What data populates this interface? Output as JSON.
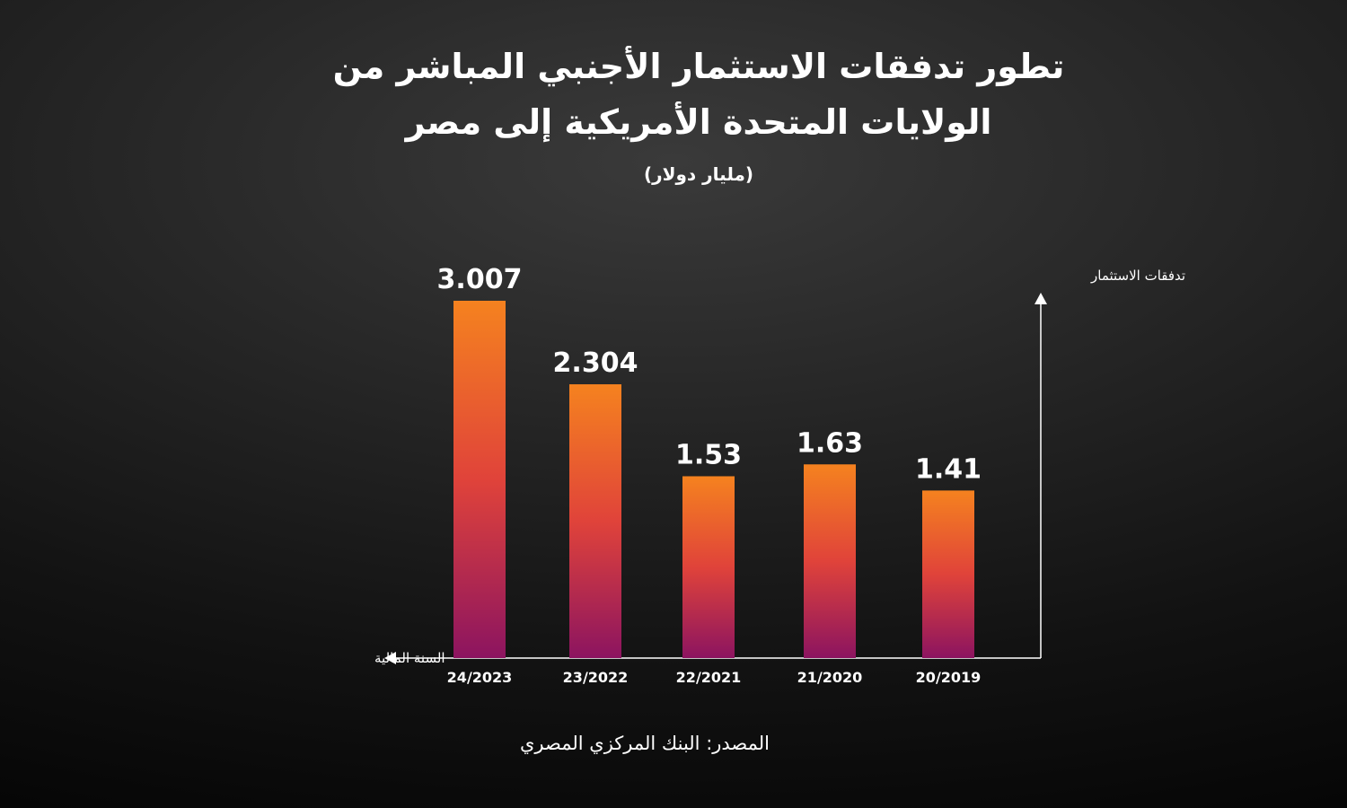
{
  "title": {
    "line1": "تطور تدفقات الاستثمار الأجنبي المباشر من",
    "line2": "الولايات المتحدة الأمريكية إلى مصر"
  },
  "subtitle": "(مليار دولار)",
  "source": "المصدر: البنك المركزي المصري",
  "colors": {
    "bar_top": "#f5821f",
    "bar_mid": "#e0433a",
    "bar_bottom": "#8c1460",
    "axis": "#ffffff"
  },
  "chart_data": {
    "type": "bar",
    "title": "تطور تدفقات الاستثمار الأجنبي المباشر من الولايات المتحدة الأمريكية إلى مصر",
    "subtitle": "(مليار دولار)",
    "xlabel": "السنة المالية",
    "ylabel": "تدفقات الاستثمار",
    "x_direction": "right-to-left",
    "categories": [
      "20/2019",
      "21/2020",
      "22/2021",
      "23/2022",
      "24/2023"
    ],
    "value_labels": [
      "1.41",
      "1.63",
      "1.53",
      "2.304",
      "3.007"
    ],
    "values": [
      1.41,
      1.63,
      1.53,
      2.304,
      3.007
    ],
    "ylim": [
      0,
      3.007
    ],
    "grid": false,
    "legend": "none"
  }
}
